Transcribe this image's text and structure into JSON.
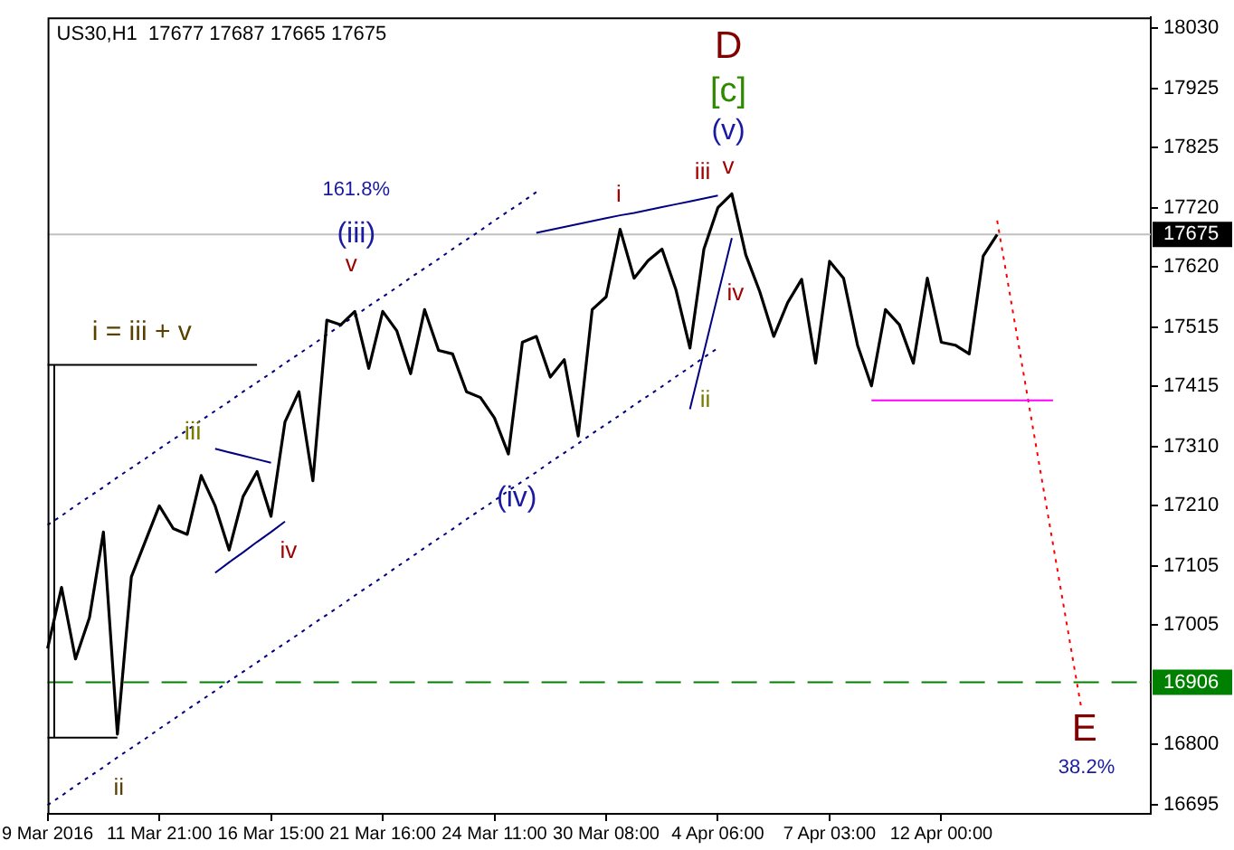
{
  "chart_data": {
    "type": "line",
    "title": "US30,H1  17677 17687 17665 17675",
    "marker": "none",
    "grid": false,
    "legend": false,
    "ylim": [
      16680,
      18048
    ],
    "yticks": [
      16695,
      16800,
      17005,
      17105,
      17210,
      17310,
      17415,
      17515,
      17620,
      17720,
      17825,
      17925,
      18030
    ],
    "categories": [
      "9 Mar 2016",
      null,
      null,
      null,
      null,
      null,
      null,
      null,
      "11 Mar 21:00",
      null,
      null,
      null,
      null,
      null,
      null,
      null,
      "16 Mar 15:00",
      null,
      null,
      null,
      null,
      null,
      null,
      null,
      "21 Mar 16:00",
      null,
      null,
      null,
      null,
      null,
      null,
      null,
      "24 Mar 11:00",
      null,
      null,
      null,
      null,
      null,
      null,
      null,
      "30 Mar 08:00",
      null,
      null,
      null,
      null,
      null,
      null,
      null,
      "4 Apr 06:00",
      null,
      null,
      null,
      null,
      null,
      null,
      null,
      "7 Apr 03:00",
      null,
      null,
      null,
      null,
      null,
      null,
      null,
      "12 Apr 00:00",
      null,
      null,
      null,
      null,
      null,
      null,
      null,
      null,
      null,
      null,
      null,
      null,
      null,
      null,
      null
    ],
    "series": [
      {
        "color": "#000000",
        "line_style": "solid",
        "values": [
          16964,
          17069,
          16946,
          17017,
          17164,
          16817,
          17087,
          17148,
          17209,
          17170,
          17160,
          17261,
          17209,
          17133,
          17225,
          17268,
          17191,
          17353,
          17405,
          17252,
          17528,
          17520,
          17543,
          17445,
          17543,
          17510,
          17436,
          17546,
          17476,
          17470,
          17405,
          17395,
          17360,
          17298,
          17490,
          17500,
          17430,
          17460,
          17329,
          17546,
          17568,
          17684,
          17600,
          17630,
          17650,
          17580,
          17480,
          17650,
          17721,
          17745,
          17640,
          17577,
          17500,
          17558,
          17598,
          17454,
          17629,
          17600,
          17485,
          17415,
          17546,
          17520,
          17454,
          17600,
          17490,
          17485,
          17470,
          17638,
          17675,
          null,
          null,
          null,
          null,
          null,
          null,
          null,
          null,
          null,
          null,
          null
        ]
      },
      {
        "color": "#000080",
        "line_style": "dotted",
        "values": [
          17176,
          17192,
          17209,
          17225,
          17241,
          17258,
          17274,
          17290,
          17307,
          17323,
          17339,
          17356,
          17372,
          17388,
          17405,
          17421,
          17437,
          17454,
          17470,
          17486,
          17503,
          17519,
          17535,
          17552,
          17568,
          17584,
          17601,
          17617,
          17633,
          17650,
          17666,
          17682,
          17699,
          17715,
          17731,
          17748,
          null,
          null,
          null,
          null,
          null,
          null,
          null,
          null,
          null,
          null,
          null,
          null,
          null,
          null,
          null,
          null,
          null,
          null,
          null,
          null,
          null,
          null,
          null,
          null,
          null,
          null,
          null,
          null,
          null,
          null,
          null,
          null,
          null,
          null,
          null,
          null,
          null,
          null,
          null,
          null,
          null,
          null,
          null,
          null
        ]
      },
      {
        "color": "#000080",
        "line_style": "dotted",
        "values": [
          16695,
          16711,
          16728,
          16744,
          16760,
          16777,
          16793,
          16809,
          16826,
          16842,
          16859,
          16875,
          16891,
          16908,
          16924,
          16940,
          16957,
          16973,
          16989,
          17006,
          17022,
          17038,
          17055,
          17071,
          17087,
          17104,
          17120,
          17137,
          17153,
          17169,
          17186,
          17202,
          17218,
          17235,
          17251,
          17267,
          17284,
          17300,
          17316,
          17333,
          17349,
          17365,
          17382,
          17398,
          17414,
          17431,
          17447,
          17464,
          17480,
          null,
          null,
          null,
          null,
          null,
          null,
          null,
          null,
          null,
          null,
          null,
          null,
          null,
          null,
          null,
          null,
          null,
          null,
          null,
          null,
          null,
          null,
          null,
          null,
          null,
          null,
          null,
          null,
          null,
          null,
          null
        ]
      },
      {
        "color": "#000080",
        "line_style": "solid",
        "values": [
          null,
          null,
          null,
          null,
          null,
          null,
          null,
          null,
          null,
          null,
          null,
          null,
          17307,
          17301,
          17295,
          17289,
          17283,
          null,
          null,
          null,
          null,
          null,
          null,
          null,
          null,
          null,
          null,
          null,
          null,
          null,
          null,
          null,
          null,
          null,
          null,
          null,
          null,
          null,
          null,
          null,
          null,
          null,
          null,
          null,
          null,
          null,
          null,
          null,
          null,
          null,
          null,
          null,
          null,
          null,
          null,
          null,
          null,
          null,
          null,
          null,
          null,
          null,
          null,
          null,
          null,
          null,
          null,
          null,
          null,
          null,
          null,
          null,
          null,
          null,
          null,
          null,
          null,
          null,
          null,
          null
        ]
      },
      {
        "color": "#000080",
        "line_style": "solid",
        "values": [
          null,
          null,
          null,
          null,
          null,
          null,
          null,
          null,
          null,
          null,
          null,
          null,
          17094,
          17112,
          17129,
          17147,
          17164,
          17182,
          null,
          null,
          null,
          null,
          null,
          null,
          null,
          null,
          null,
          null,
          null,
          null,
          null,
          null,
          null,
          null,
          null,
          null,
          null,
          null,
          null,
          null,
          null,
          null,
          null,
          null,
          null,
          null,
          null,
          null,
          null,
          null,
          null,
          null,
          null,
          null,
          null,
          null,
          null,
          null,
          null,
          null,
          null,
          null,
          null,
          null,
          null,
          null,
          null,
          null,
          null,
          null,
          null,
          null,
          null,
          null,
          null,
          null,
          null,
          null,
          null,
          null
        ]
      },
      {
        "color": "#000080",
        "line_style": "solid",
        "values": [
          null,
          null,
          null,
          null,
          null,
          null,
          null,
          null,
          null,
          null,
          null,
          null,
          null,
          null,
          null,
          null,
          null,
          null,
          null,
          null,
          null,
          null,
          null,
          null,
          null,
          null,
          null,
          null,
          null,
          null,
          null,
          null,
          null,
          null,
          null,
          17678,
          17683,
          17688,
          17693,
          17698,
          17703,
          17708,
          17712,
          17717,
          17722,
          17727,
          17732,
          17737,
          17742,
          null,
          null,
          null,
          null,
          null,
          null,
          null,
          null,
          null,
          null,
          null,
          null,
          null,
          null,
          null,
          null,
          null,
          null,
          null,
          null,
          null,
          null,
          null,
          null,
          null,
          null,
          null,
          null,
          null,
          null,
          null
        ]
      },
      {
        "color": "#000080",
        "line_style": "solid",
        "values": [
          null,
          null,
          null,
          null,
          null,
          null,
          null,
          null,
          null,
          null,
          null,
          null,
          null,
          null,
          null,
          null,
          null,
          null,
          null,
          null,
          null,
          null,
          null,
          null,
          null,
          null,
          null,
          null,
          null,
          null,
          null,
          null,
          null,
          null,
          null,
          null,
          null,
          null,
          null,
          null,
          null,
          null,
          null,
          null,
          null,
          null,
          17375,
          17473,
          17571,
          17669,
          null,
          null,
          null,
          null,
          null,
          null,
          null,
          null,
          null,
          null,
          null,
          null,
          null,
          null,
          null,
          null,
          null,
          null,
          null,
          null,
          null,
          null,
          null,
          null,
          null,
          null,
          null,
          null,
          null,
          null
        ]
      },
      {
        "color": "#000000",
        "line_style": "solid",
        "values": [
          17451,
          17451,
          17451,
          17451,
          17451,
          17451,
          17451,
          17451,
          17451,
          17451,
          17451,
          17451,
          17451,
          17451,
          17451,
          17451,
          null,
          null,
          null,
          null,
          null,
          null,
          null,
          null,
          null,
          null,
          null,
          null,
          null,
          null,
          null,
          null,
          null,
          null,
          null,
          null,
          null,
          null,
          null,
          null,
          null,
          null,
          null,
          null,
          null,
          null,
          null,
          null,
          null,
          null,
          null,
          null,
          null,
          null,
          null,
          null,
          null,
          null,
          null,
          null,
          null,
          null,
          null,
          null,
          null,
          null,
          null,
          null,
          null,
          null,
          null,
          null,
          null,
          null,
          null,
          null,
          null,
          null,
          null,
          null
        ]
      },
      {
        "color": "#000000",
        "line_style": "solid",
        "values": [
          16811,
          16811,
          16811,
          16811,
          16811,
          16811,
          null,
          null,
          null,
          null,
          null,
          null,
          null,
          null,
          null,
          null,
          null,
          null,
          null,
          null,
          null,
          null,
          null,
          null,
          null,
          null,
          null,
          null,
          null,
          null,
          null,
          null,
          null,
          null,
          null,
          null,
          null,
          null,
          null,
          null,
          null,
          null,
          null,
          null,
          null,
          null,
          null,
          null,
          null,
          null,
          null,
          null,
          null,
          null,
          null,
          null,
          null,
          null,
          null,
          null,
          null,
          null,
          null,
          null,
          null,
          null,
          null,
          null,
          null,
          null,
          null,
          null,
          null,
          null,
          null,
          null,
          null,
          null,
          null,
          null
        ]
      },
      {
        "color": "#ff00ff",
        "line_style": "solid",
        "values": [
          null,
          null,
          null,
          null,
          null,
          null,
          null,
          null,
          null,
          null,
          null,
          null,
          null,
          null,
          null,
          null,
          null,
          null,
          null,
          null,
          null,
          null,
          null,
          null,
          null,
          null,
          null,
          null,
          null,
          null,
          null,
          null,
          null,
          null,
          null,
          null,
          null,
          null,
          null,
          null,
          null,
          null,
          null,
          null,
          null,
          null,
          null,
          null,
          null,
          null,
          null,
          null,
          null,
          null,
          null,
          null,
          null,
          null,
          null,
          17390,
          17390,
          17390,
          17390,
          17390,
          17390,
          17390,
          17390,
          17390,
          17390,
          17390,
          17390,
          17390,
          17390,
          null,
          null,
          null,
          null,
          null,
          null,
          null
        ]
      },
      {
        "color": "#ff0000",
        "line_style": "dotted",
        "values": [
          null,
          null,
          null,
          null,
          null,
          null,
          null,
          null,
          null,
          null,
          null,
          null,
          null,
          null,
          null,
          null,
          null,
          null,
          null,
          null,
          null,
          null,
          null,
          null,
          null,
          null,
          null,
          null,
          null,
          null,
          null,
          null,
          null,
          null,
          null,
          null,
          null,
          null,
          null,
          null,
          null,
          null,
          null,
          null,
          null,
          null,
          null,
          null,
          null,
          null,
          null,
          null,
          null,
          null,
          null,
          null,
          null,
          null,
          null,
          null,
          null,
          null,
          null,
          null,
          null,
          null,
          null,
          null,
          17699,
          17560,
          17421,
          17282,
          17143,
          17004,
          16865,
          null,
          null,
          null,
          null,
          null
        ]
      }
    ],
    "ref_lines": [
      {
        "axis": "y",
        "value": 17675,
        "label": "17675",
        "color": "#c0c0c0",
        "line_style": "solid"
      },
      {
        "axis": "y",
        "value": 16906,
        "label": "16906",
        "color": "#008000",
        "line_style": "dashed"
      }
    ],
    "annotations": [
      "D",
      "[c]",
      "(v)",
      "v",
      "iii",
      "i",
      "161.8%",
      {
        "text": "(iii)",
        "y": 17675
      },
      "v",
      "i = iii + v",
      {
        "text": "iii",
        "y": 17335
      },
      "iv",
      "(iv)",
      "iv",
      "ii",
      "ii",
      "E",
      "38.2%"
    ]
  }
}
